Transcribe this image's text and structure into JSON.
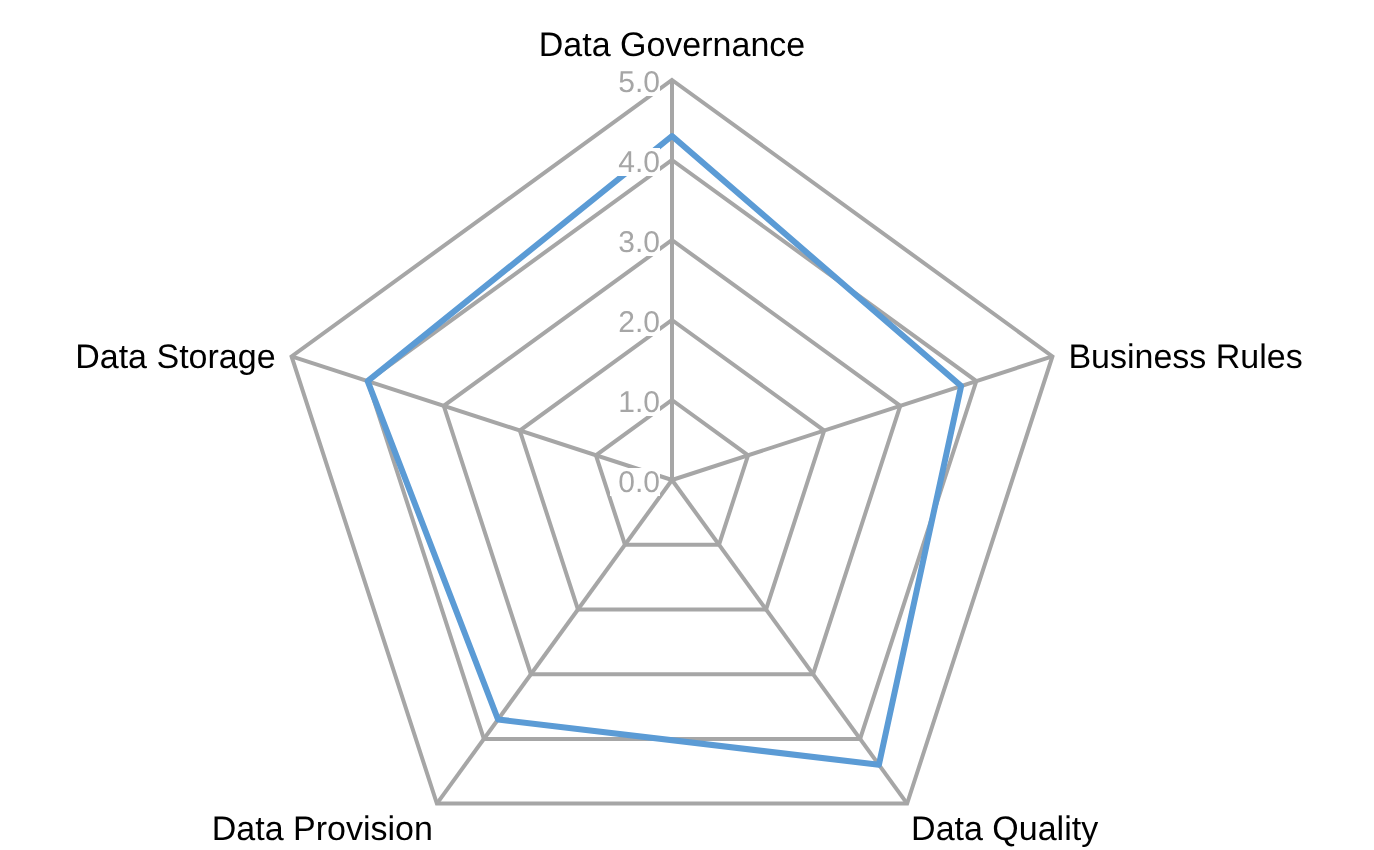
{
  "chart_data": {
    "type": "radar",
    "categories": [
      "Data Governance",
      "Business Rules",
      "Data Quality",
      "Data Provision",
      "Data Storage"
    ],
    "series": [
      {
        "color": "#5b9bd5",
        "values": [
          4.3,
          3.8,
          4.4,
          3.7,
          4.0
        ]
      }
    ],
    "ylim": [
      0,
      5
    ],
    "yticks": [
      {
        "value": 0,
        "label": "0.0"
      },
      {
        "value": 1,
        "label": "1.0"
      },
      {
        "value": 2,
        "label": "2.0"
      },
      {
        "value": 3,
        "label": "3.0"
      },
      {
        "value": 4,
        "label": "4.0"
      },
      {
        "value": 5,
        "label": "5.0"
      }
    ],
    "grid": true,
    "marker": "none"
  }
}
